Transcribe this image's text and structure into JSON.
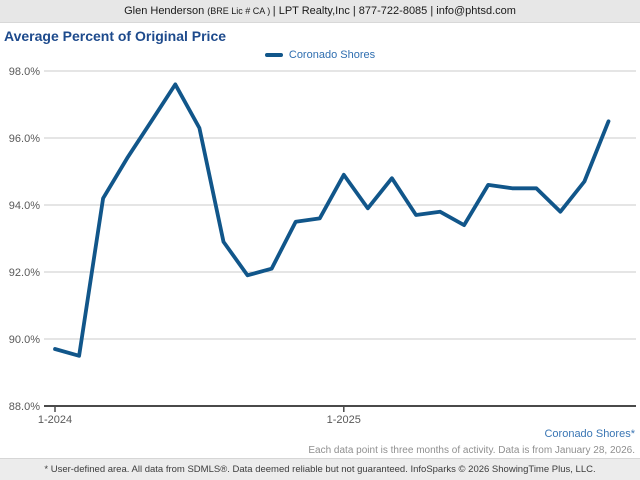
{
  "header": {
    "agent": "Glen Henderson ",
    "license": "(BRE Lic # CA ) ",
    "rest": "| LPT Realty,Inc | 877-722-8085 | info@phtsd.com"
  },
  "title": "Average Percent of Original Price",
  "legend": {
    "label": "Coronado Shores"
  },
  "colors": {
    "line": "#11568a",
    "title": "#1d4a8c",
    "legend_text": "#2f6eb0",
    "grid": "#cbcbcb",
    "axis": "#4a4a4a",
    "tick_text": "#595959"
  },
  "chart_data": {
    "type": "line",
    "title": "Average Percent of Original Price",
    "x": [
      "1-2024",
      "2-2024",
      "3-2024",
      "4-2024",
      "5-2024",
      "6-2024",
      "7-2024",
      "8-2024",
      "9-2024",
      "10-2024",
      "11-2024",
      "12-2024",
      "1-2025",
      "2-2025",
      "3-2025",
      "4-2025",
      "5-2025",
      "6-2025",
      "7-2025",
      "8-2025",
      "9-2025",
      "10-2025",
      "11-2025",
      "12-2025"
    ],
    "series": [
      {
        "name": "Coronado Shores",
        "values": [
          89.7,
          89.5,
          94.2,
          95.4,
          96.5,
          97.6,
          96.3,
          92.9,
          91.9,
          92.1,
          93.5,
          93.6,
          94.9,
          93.9,
          94.8,
          93.7,
          93.8,
          93.4,
          94.6,
          94.5,
          94.5,
          93.8,
          94.7,
          96.5
        ]
      }
    ],
    "ylim": [
      88.0,
      98.0
    ],
    "y_ticks": [
      {
        "value": 98,
        "label": "98.0%"
      },
      {
        "value": 96,
        "label": "96.0%"
      },
      {
        "value": 94,
        "label": "94.0%"
      },
      {
        "value": 92,
        "label": "92.0%"
      },
      {
        "value": 90,
        "label": "90.0%"
      },
      {
        "value": 88,
        "label": "88.0%"
      }
    ],
    "x_ticks": [
      {
        "index": 0,
        "label": "1-2024"
      },
      {
        "index": 12,
        "label": "1-2025"
      }
    ],
    "grid": true,
    "legend_position": "top-center"
  },
  "footer": {
    "series_note": "Coronado Shores*",
    "data_note": "Each data point is three months of activity. Data is from January 28, 2026.",
    "disclaimer": "* User-defined area. All data from SDMLS®. Data deemed reliable but not guaranteed. InfoSparks © 2026 ShowingTime Plus, LLC."
  }
}
